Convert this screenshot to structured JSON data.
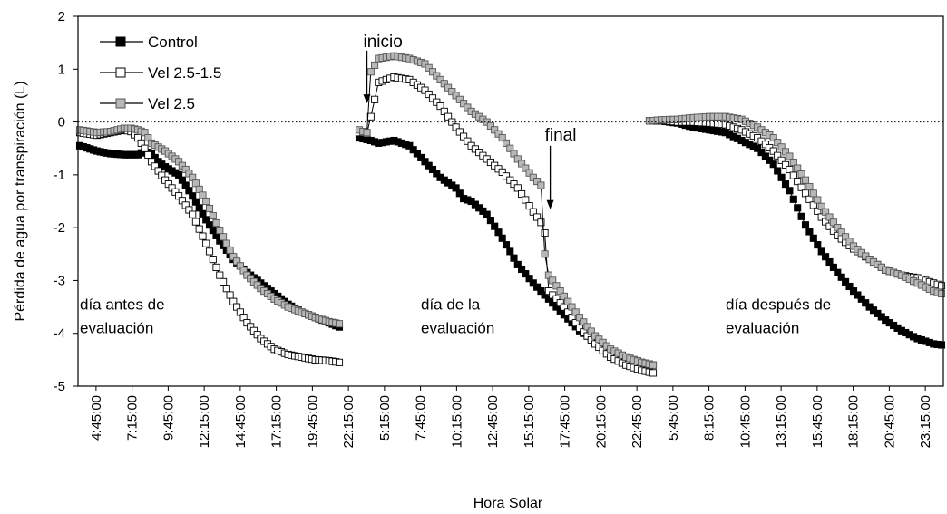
{
  "chart_data": {
    "type": "line",
    "title": "",
    "xlabel": "Hora Solar",
    "ylabel": "Pérdida de agua por transpiración (L)",
    "ylim": [
      -5,
      2
    ],
    "yticks": [
      -5,
      -4,
      -3,
      -2,
      -1,
      0,
      1,
      2
    ],
    "reference_line": {
      "y": 0,
      "style": "dotted"
    },
    "grid": false,
    "legend_position": "top-left",
    "x_tick_labels": [
      "4:45:00",
      "7:15:00",
      "9:45:00",
      "12:15:00",
      "14:45:00",
      "17:15:00",
      "19:45:00",
      "22:15:00",
      "5:15:00",
      "7:45:00",
      "10:15:00",
      "12:45:00",
      "15:15:00",
      "17:45:00",
      "20:15:00",
      "22:45:00",
      "5:45:00",
      "8:15:00",
      "10:45:00",
      "13:15:00",
      "15:45:00",
      "18:15:00",
      "20:45:00",
      "23:15:00"
    ],
    "days": [
      {
        "label": "día antes de\nevaluación",
        "start_hour": 4.75,
        "end_hour": 23.75
      },
      {
        "label": "día de la\nevaluación",
        "start_hour": 4.75,
        "end_hour": 23.75
      },
      {
        "label": "día después de\nevaluación",
        "start_hour": 5.25,
        "end_hour": 23.5
      }
    ],
    "annotations": [
      {
        "text": "inicio",
        "day": 2,
        "hour": 5.25,
        "arrow_from_value": 1.35,
        "arrow_to_value": 0.35
      },
      {
        "text": "final",
        "day": 2,
        "hour": 17.1,
        "arrow_from_value": -0.45,
        "arrow_to_value": -1.65
      }
    ],
    "series": [
      {
        "name": "Control",
        "marker": "square-filled",
        "color": "#000000",
        "days": [
          {
            "hours": [
              4.75,
              6,
              7,
              8,
              9,
              9.5,
              10,
              10.5,
              11,
              12,
              13,
              14,
              15,
              16,
              17,
              18,
              19,
              20,
              21,
              22,
              23,
              23.75
            ],
            "values": [
              -0.45,
              -0.55,
              -0.6,
              -0.62,
              -0.62,
              -0.55,
              -0.6,
              -0.75,
              -0.85,
              -1.0,
              -1.4,
              -1.85,
              -2.25,
              -2.6,
              -2.85,
              -3.05,
              -3.25,
              -3.45,
              -3.6,
              -3.7,
              -3.8,
              -3.88
            ]
          },
          {
            "hours": [
              4.75,
              5.5,
              6,
              7,
              8,
              9,
              10,
              11,
              11.5,
              12,
              13,
              14,
              15,
              16,
              17,
              18,
              19,
              20,
              21,
              22,
              23,
              23.75
            ],
            "values": [
              -0.3,
              -0.35,
              -0.4,
              -0.35,
              -0.45,
              -0.75,
              -1.05,
              -1.25,
              -1.45,
              -1.5,
              -1.75,
              -2.2,
              -2.7,
              -3.05,
              -3.35,
              -3.65,
              -3.95,
              -4.15,
              -4.35,
              -4.45,
              -4.55,
              -4.6
            ]
          },
          {
            "hours": [
              5.25,
              6,
              7,
              8,
              9,
              10,
              11,
              12,
              13,
              14,
              15,
              16,
              17,
              18,
              19,
              20,
              21,
              22,
              23,
              23.5
            ],
            "values": [
              0.02,
              0.02,
              -0.02,
              -0.1,
              -0.15,
              -0.2,
              -0.35,
              -0.5,
              -0.8,
              -1.3,
              -1.95,
              -2.45,
              -2.85,
              -3.2,
              -3.5,
              -3.75,
              -3.95,
              -4.1,
              -4.2,
              -4.22
            ]
          }
        ]
      },
      {
        "name": "Vel 2.5-1.5",
        "marker": "square-open",
        "color": "#000000",
        "days": [
          {
            "hours": [
              4.75,
              6,
              7,
              8,
              8.5,
              9,
              9.5,
              10,
              11,
              12,
              13,
              14,
              15,
              16,
              17,
              18,
              19,
              20,
              21,
              22,
              23,
              23.75
            ],
            "values": [
              -0.2,
              -0.25,
              -0.2,
              -0.15,
              -0.18,
              -0.3,
              -0.5,
              -0.75,
              -1.1,
              -1.4,
              -1.75,
              -2.3,
              -2.9,
              -3.4,
              -3.8,
              -4.1,
              -4.3,
              -4.4,
              -4.45,
              -4.5,
              -4.52,
              -4.55
            ]
          },
          {
            "hours": [
              4.75,
              5,
              5.25,
              5.5,
              6,
              7,
              8,
              9,
              10,
              11,
              12,
              13,
              14,
              15,
              16,
              16.5,
              16.75,
              17,
              18,
              19,
              20,
              21,
              22,
              23,
              23.75
            ],
            "values": [
              -0.2,
              -0.2,
              -0.22,
              0.1,
              0.75,
              0.85,
              0.8,
              0.6,
              0.3,
              -0.1,
              -0.45,
              -0.7,
              -0.95,
              -1.25,
              -1.7,
              -1.9,
              -2.1,
              -3.2,
              -3.5,
              -3.9,
              -4.2,
              -4.45,
              -4.6,
              -4.7,
              -4.75
            ]
          },
          {
            "hours": [
              5.25,
              6,
              7,
              8,
              9,
              10,
              11,
              12,
              13,
              14,
              15,
              16,
              17,
              18,
              19,
              20,
              21,
              22,
              23,
              23.5
            ],
            "values": [
              0.02,
              0.03,
              0.0,
              0.0,
              -0.02,
              -0.05,
              -0.15,
              -0.3,
              -0.55,
              -0.9,
              -1.35,
              -1.8,
              -2.15,
              -2.4,
              -2.6,
              -2.8,
              -2.9,
              -2.95,
              -3.05,
              -3.1
            ]
          }
        ]
      },
      {
        "name": "Vel 2.5",
        "marker": "square-gray",
        "color": "#b0b0b0",
        "days": [
          {
            "hours": [
              4.75,
              6,
              7,
              8,
              8.5,
              9,
              9.5,
              10,
              11,
              12,
              13,
              14,
              15,
              16,
              17,
              18,
              19,
              20,
              21,
              22,
              23,
              23.75
            ],
            "values": [
              -0.15,
              -0.2,
              -0.18,
              -0.12,
              -0.12,
              -0.15,
              -0.2,
              -0.4,
              -0.55,
              -0.75,
              -1.05,
              -1.5,
              -2.05,
              -2.55,
              -2.9,
              -3.15,
              -3.35,
              -3.5,
              -3.6,
              -3.7,
              -3.78,
              -3.82
            ]
          },
          {
            "hours": [
              4.75,
              5,
              5.25,
              5.5,
              6,
              7,
              8,
              9,
              10,
              11,
              12,
              13,
              14,
              15,
              16,
              16.5,
              16.75,
              17,
              18,
              19,
              20,
              21,
              22,
              23,
              23.75
            ],
            "values": [
              -0.15,
              -0.18,
              -0.2,
              0.95,
              1.2,
              1.25,
              1.2,
              1.1,
              0.8,
              0.5,
              0.2,
              0.0,
              -0.3,
              -0.7,
              -1.05,
              -1.2,
              -2.5,
              -2.9,
              -3.3,
              -3.7,
              -4.05,
              -4.3,
              -4.45,
              -4.55,
              -4.6
            ]
          },
          {
            "hours": [
              5.25,
              6,
              7,
              8,
              9,
              10,
              11,
              12,
              13,
              14,
              15,
              16,
              17,
              18,
              19,
              20,
              21,
              22,
              23,
              23.5
            ],
            "values": [
              0.02,
              0.04,
              0.05,
              0.08,
              0.1,
              0.1,
              0.05,
              -0.1,
              -0.3,
              -0.65,
              -1.1,
              -1.6,
              -2.0,
              -2.35,
              -2.6,
              -2.8,
              -2.9,
              -3.05,
              -3.2,
              -3.25
            ]
          }
        ]
      }
    ]
  }
}
